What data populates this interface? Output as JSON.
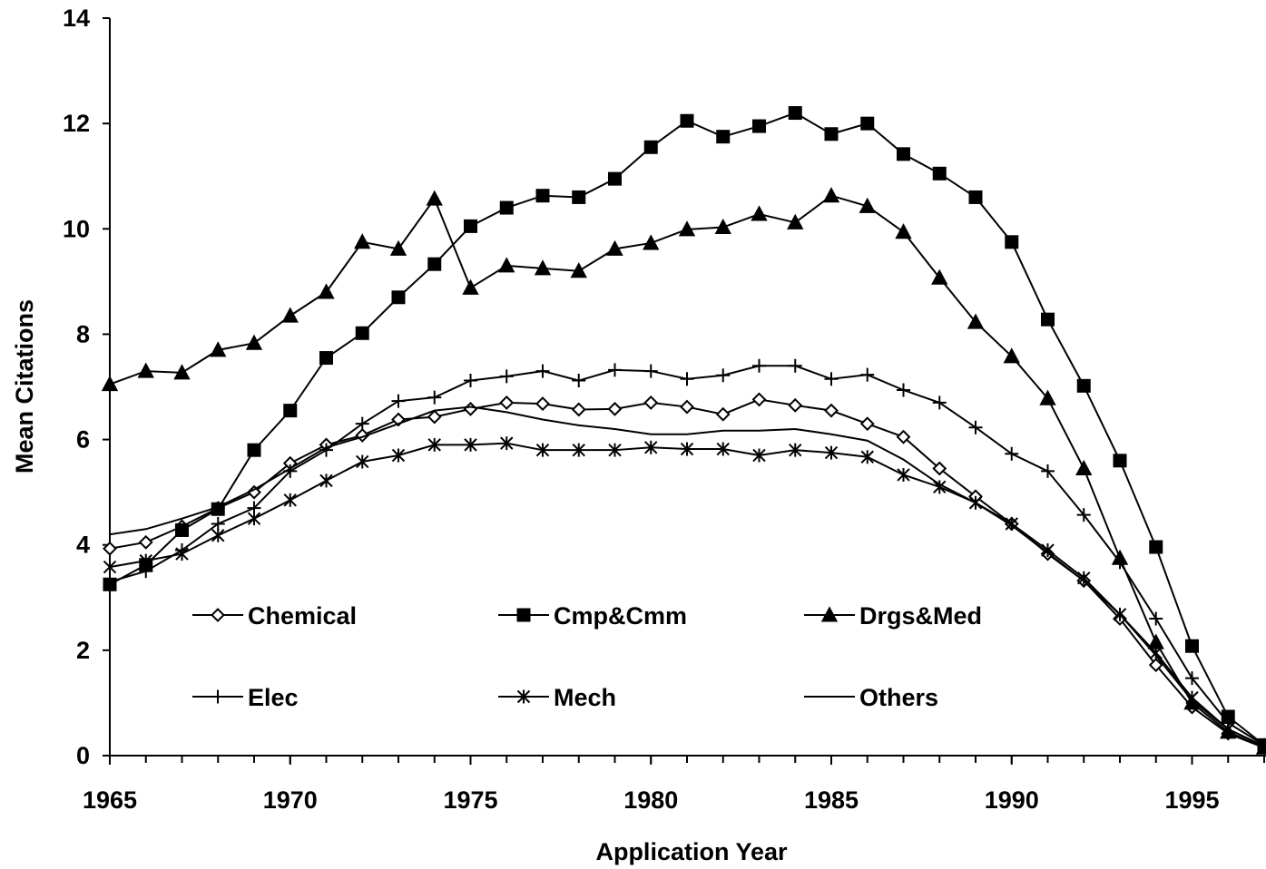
{
  "chart_data": {
    "type": "line",
    "xlabel": "Application Year",
    "ylabel": "Mean Citations",
    "x": [
      1965,
      1966,
      1967,
      1968,
      1969,
      1970,
      1971,
      1972,
      1973,
      1974,
      1975,
      1976,
      1977,
      1978,
      1979,
      1980,
      1981,
      1982,
      1983,
      1984,
      1985,
      1986,
      1987,
      1988,
      1989,
      1990,
      1991,
      1992,
      1993,
      1994,
      1995,
      1996,
      1997
    ],
    "xlim": [
      1965,
      1997
    ],
    "xticks": [
      1965,
      1970,
      1975,
      1980,
      1985,
      1990,
      1995
    ],
    "ylim": [
      0,
      14
    ],
    "yticks": [
      0,
      2,
      4,
      6,
      8,
      10,
      12,
      14
    ],
    "series": [
      {
        "name": "Chemical",
        "color": "#000000",
        "marker": "diamond-open",
        "values": [
          3.93,
          4.05,
          4.35,
          4.7,
          5.0,
          5.55,
          5.9,
          6.08,
          6.38,
          6.43,
          6.58,
          6.7,
          6.68,
          6.57,
          6.58,
          6.7,
          6.62,
          6.48,
          6.76,
          6.65,
          6.55,
          6.3,
          6.05,
          5.45,
          4.92,
          4.4,
          3.83,
          3.32,
          2.6,
          1.72,
          0.92,
          0.42,
          0.15
        ]
      },
      {
        "name": "Cmp&Cmm",
        "color": "#000000",
        "marker": "square",
        "values": [
          3.25,
          3.62,
          4.28,
          4.68,
          5.8,
          6.55,
          7.55,
          8.02,
          8.7,
          9.33,
          10.05,
          10.4,
          10.63,
          10.6,
          10.95,
          11.55,
          12.05,
          11.75,
          11.95,
          12.2,
          11.8,
          12.0,
          11.42,
          11.05,
          10.6,
          9.75,
          8.28,
          7.02,
          5.6,
          3.96,
          2.08,
          0.74,
          0.2
        ]
      },
      {
        "name": "Drgs&Med",
        "color": "#000000",
        "marker": "triangle",
        "values": [
          7.05,
          7.3,
          7.27,
          7.7,
          7.83,
          8.35,
          8.8,
          9.75,
          9.62,
          10.57,
          8.88,
          9.3,
          9.25,
          9.2,
          9.62,
          9.73,
          9.99,
          10.03,
          10.28,
          10.12,
          10.63,
          10.43,
          9.94,
          9.07,
          8.23,
          7.58,
          6.78,
          5.45,
          3.75,
          2.15,
          1.0,
          0.45,
          0.15
        ]
      },
      {
        "name": "Elec",
        "color": "#000000",
        "marker": "plus",
        "values": [
          3.3,
          3.5,
          3.9,
          4.4,
          4.7,
          5.4,
          5.8,
          6.3,
          6.73,
          6.8,
          7.12,
          7.2,
          7.3,
          7.12,
          7.32,
          7.3,
          7.15,
          7.22,
          7.4,
          7.4,
          7.15,
          7.23,
          6.94,
          6.7,
          6.23,
          5.73,
          5.4,
          4.57,
          3.67,
          2.6,
          1.47,
          0.62,
          0.2
        ]
      },
      {
        "name": "Mech",
        "color": "#000000",
        "marker": "asterisk",
        "values": [
          3.58,
          3.7,
          3.83,
          4.18,
          4.5,
          4.85,
          5.22,
          5.58,
          5.7,
          5.9,
          5.9,
          5.93,
          5.8,
          5.8,
          5.8,
          5.85,
          5.82,
          5.82,
          5.7,
          5.8,
          5.75,
          5.67,
          5.33,
          5.1,
          4.8,
          4.4,
          3.9,
          3.37,
          2.68,
          1.95,
          1.1,
          0.5,
          0.18
        ]
      },
      {
        "name": "Others",
        "color": "#000000",
        "marker": "none",
        "values": [
          4.2,
          4.3,
          4.5,
          4.72,
          5.05,
          5.45,
          5.85,
          6.05,
          6.3,
          6.55,
          6.62,
          6.52,
          6.38,
          6.27,
          6.2,
          6.1,
          6.1,
          6.17,
          6.17,
          6.2,
          6.1,
          5.98,
          5.62,
          5.15,
          4.8,
          4.37,
          3.85,
          3.32,
          2.68,
          1.9,
          1.05,
          0.5,
          0.18
        ]
      }
    ]
  }
}
